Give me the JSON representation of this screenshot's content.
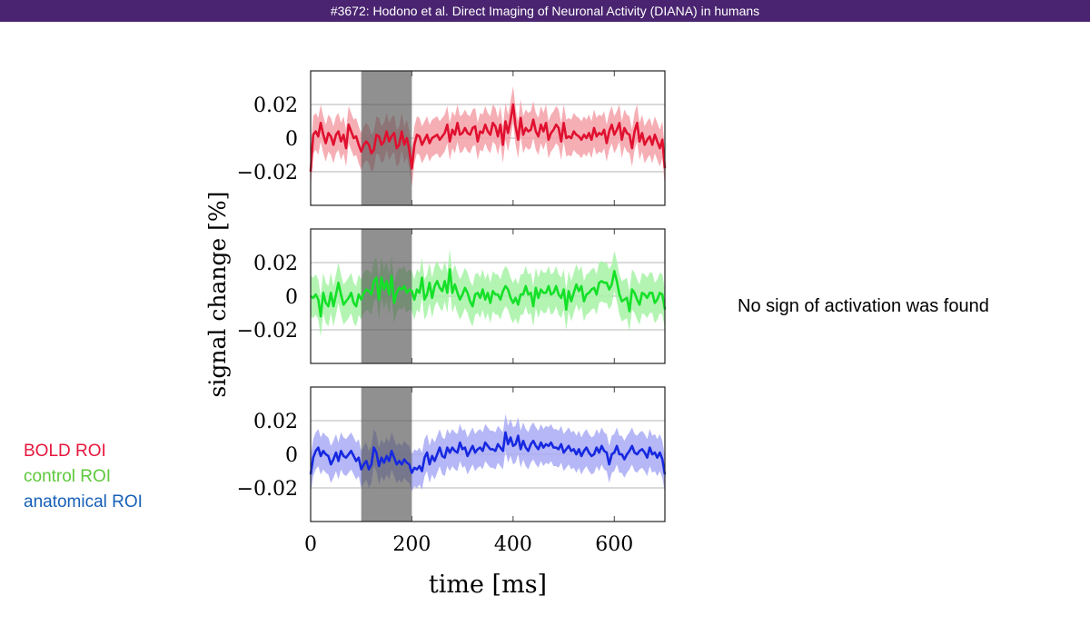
{
  "header": {
    "title": "#3672: Hodono et al. Direct Imaging of Neuronal Activity (DIANA) in humans"
  },
  "legend": [
    {
      "label": "BOLD ROI",
      "color": "#e8163c"
    },
    {
      "label": "control ROI",
      "color": "#5ec83a"
    },
    {
      "label": "anatomical ROI",
      "color": "#1660b8"
    }
  ],
  "annotation": "No sign of activation was found",
  "chart_data": {
    "type": "line",
    "xlabel": "time [ms]",
    "ylabel": "signal change [%]",
    "xlim": [
      0,
      700
    ],
    "ylim": [
      -0.04,
      0.04
    ],
    "x_ticks": [
      0,
      200,
      400,
      600
    ],
    "y_ticks": [
      0.02,
      0,
      -0.02
    ],
    "y_tick_labels": [
      "0.02",
      "0",
      "−0.02"
    ],
    "grid": true,
    "stimulus_shading": {
      "x_start": 100,
      "x_end": 200,
      "color": "#555555"
    },
    "x": [
      0,
      5,
      10,
      15,
      20,
      25,
      30,
      35,
      40,
      45,
      50,
      55,
      60,
      65,
      70,
      75,
      80,
      85,
      90,
      95,
      100,
      105,
      110,
      115,
      120,
      125,
      130,
      135,
      140,
      145,
      150,
      155,
      160,
      165,
      170,
      175,
      180,
      185,
      190,
      195,
      200,
      205,
      210,
      215,
      220,
      225,
      230,
      235,
      240,
      245,
      250,
      255,
      260,
      265,
      270,
      275,
      280,
      285,
      290,
      295,
      300,
      305,
      310,
      315,
      320,
      325,
      330,
      335,
      340,
      345,
      350,
      355,
      360,
      365,
      370,
      375,
      380,
      385,
      390,
      395,
      400,
      405,
      410,
      415,
      420,
      425,
      430,
      435,
      440,
      445,
      450,
      455,
      460,
      465,
      470,
      475,
      480,
      485,
      490,
      495,
      500,
      505,
      510,
      515,
      520,
      525,
      530,
      535,
      540,
      545,
      550,
      555,
      560,
      565,
      570,
      575,
      580,
      585,
      590,
      595,
      600,
      605,
      610,
      615,
      620,
      625,
      630,
      635,
      640,
      645,
      650,
      655,
      660,
      665,
      670,
      675,
      680,
      685,
      690,
      695,
      700
    ],
    "series": [
      {
        "name": "BOLD ROI",
        "line_color": "#e0102f",
        "band_color": "#f5a0a8",
        "band_halfwidth": 0.011,
        "values": [
          -0.02,
          0.002,
          0.004,
          0.001,
          0.009,
          0.002,
          -0.003,
          0.003,
          0.001,
          -0.004,
          0.002,
          0.004,
          -0.002,
          0.002,
          -0.006,
          0.008,
          0.004,
          0,
          0.001,
          -0.004,
          -0.008,
          -0.004,
          -0.002,
          -0.004,
          -0.009,
          -0.007,
          0.002,
          0.001,
          -0.004,
          -0.002,
          0.004,
          -0.002,
          0.001,
          0.003,
          -0.006,
          -0.004,
          0.004,
          -0.004,
          0,
          -0.007,
          -0.018,
          -0.004,
          0.002,
          0.001,
          -0.004,
          -0.001,
          0.002,
          -0.003,
          0,
          0.001,
          0.002,
          -0.001,
          0.001,
          0.003,
          0.008,
          -0.002,
          0.005,
          0.002,
          0.009,
          0.002,
          0.003,
          0.006,
          0.003,
          0.002,
          0.006,
          0.007,
          -0.002,
          0.004,
          0.003,
          0.008,
          0.004,
          0.002,
          0.009,
          0.007,
          0.001,
          0.008,
          -0.004,
          0.01,
          0.003,
          0.011,
          0.02,
          0.007,
          -0.001,
          0.012,
          0.002,
          0.006,
          0.004,
          0.005,
          0.011,
          0.004,
          0.001,
          0.008,
          0.004,
          0.009,
          -0.001,
          0.003,
          0.005,
          0.008,
          0.006,
          -0.002,
          0.009,
          0,
          0.001,
          0,
          0.004,
          0.002,
          0.001,
          -0.001,
          0.002,
          0,
          0.003,
          -0.001,
          0.006,
          0.001,
          0.003,
          0.002,
          0.005,
          -0.003,
          0.004,
          0.008,
          0.002,
          0.005,
          0.009,
          -0.001,
          0.006,
          0.003,
          0.002,
          -0.006,
          0.004,
          0.009,
          -0.002,
          0.003,
          -0.004,
          -0.001,
          0.001,
          -0.004,
          0.002,
          -0.002,
          -0.006,
          -0.001,
          -0.018
        ]
      },
      {
        "name": "control ROI",
        "line_color": "#14e028",
        "band_color": "#a6f2a6",
        "band_halfwidth": 0.012,
        "values": [
          0,
          -0.001,
          0.001,
          -0.002,
          -0.012,
          0.002,
          -0.004,
          -0.006,
          0.002,
          -0.006,
          0.001,
          0.008,
          0.001,
          -0.005,
          -0.003,
          -0.001,
          0.002,
          -0.004,
          -0.006,
          0.001,
          -0.002,
          0.002,
          0.004,
          0.003,
          0.001,
          0.009,
          0.011,
          -0.002,
          0.011,
          0.004,
          0.009,
          0.001,
          0.012,
          -0.004,
          0.002,
          0.005,
          0.004,
          0.006,
          0.002,
          0.004,
          0.003,
          -0.002,
          0.004,
          0.002,
          0.011,
          -0.002,
          0.001,
          0.008,
          -0.001,
          0.006,
          0.009,
          0.005,
          0.003,
          0.009,
          0.002,
          0.016,
          0.002,
          0.007,
          0.002,
          -0.002,
          0.001,
          0.005,
          0.002,
          -0.003,
          -0.006,
          0.001,
          0.002,
          -0.001,
          0.004,
          -0.002,
          0.002,
          -0.004,
          0.003,
          0.001,
          0.001,
          -0.002,
          0.003,
          0.006,
          0.004,
          -0.001,
          -0.004,
          -0.001,
          -0.005,
          0.001,
          0.001,
          0.006,
          0.001,
          0.002,
          -0.006,
          0.005,
          -0.001,
          0.004,
          0.002,
          0.002,
          0.006,
          0.001,
          0.002,
          0.006,
          0.001,
          -0.001,
          0.004,
          -0.008,
          0.003,
          -0.003,
          0.002,
          0.007,
          0.003,
          0.006,
          -0.003,
          0.001,
          0.002,
          0.004,
          0.005,
          0.001,
          0.008,
          0.009,
          0.008,
          0.008,
          0.004,
          0.007,
          0.015,
          0.009,
          0.001,
          -0.003,
          -0.002,
          -0.001,
          -0.009,
          0.004,
          0.002,
          -0.002,
          -0.005,
          0.002,
          0.001,
          -0.001,
          0.002,
          0.002,
          -0.004,
          -0.002,
          0.002,
          0.001,
          -0.008
        ]
      },
      {
        "name": "anatomical ROI",
        "line_color": "#1628e0",
        "band_color": "#a8aaf4",
        "band_halfwidth": 0.011,
        "values": [
          -0.012,
          -0.002,
          0.002,
          0.004,
          -0.001,
          0.002,
          0,
          -0.001,
          -0.006,
          -0.003,
          0.001,
          -0.004,
          0.002,
          -0.001,
          -0.002,
          0,
          0.002,
          -0.001,
          -0.004,
          -0.002,
          -0.009,
          -0.006,
          -0.004,
          -0.009,
          -0.006,
          0.004,
          0.001,
          -0.007,
          -0.002,
          -0.005,
          -0.001,
          -0.004,
          0.002,
          -0.002,
          -0.006,
          -0.004,
          -0.006,
          -0.003,
          -0.005,
          -0.006,
          -0.011,
          -0.008,
          -0.009,
          -0.007,
          -0.01,
          -0.002,
          0.001,
          -0.006,
          -0.001,
          -0.004,
          0,
          0.004,
          -0.001,
          -0.002,
          0.004,
          0.001,
          0.004,
          0.002,
          0.001,
          0.007,
          0.003,
          0.004,
          -0.001,
          0.002,
          0.005,
          0.001,
          0.003,
          0.004,
          0.002,
          0.007,
          0.005,
          0.003,
          0.003,
          0.002,
          0.006,
          0.004,
          0.002,
          0.013,
          0.006,
          0.01,
          0.005,
          0.006,
          0.011,
          0.003,
          0.008,
          0.004,
          0.002,
          0.006,
          0.008,
          0.005,
          0.003,
          0.007,
          0.004,
          0.006,
          0.005,
          0.007,
          0.004,
          0.004,
          0.003,
          0.006,
          0.001,
          0.003,
          0.005,
          0.002,
          0.003,
          0,
          0.003,
          -0.001,
          0.002,
          0.004,
          0.001,
          -0.001,
          0,
          0.004,
          0.001,
          0.005,
          0.002,
          0.001,
          -0.006,
          0,
          0.001,
          0.005,
          0,
          0,
          -0.003,
          0,
          0.002,
          0.005,
          0.001,
          0,
          0.002,
          0.003,
          0.001,
          -0.002,
          0.004,
          0,
          0.001,
          -0.002,
          0.001,
          -0.003,
          -0.012
        ]
      }
    ]
  }
}
